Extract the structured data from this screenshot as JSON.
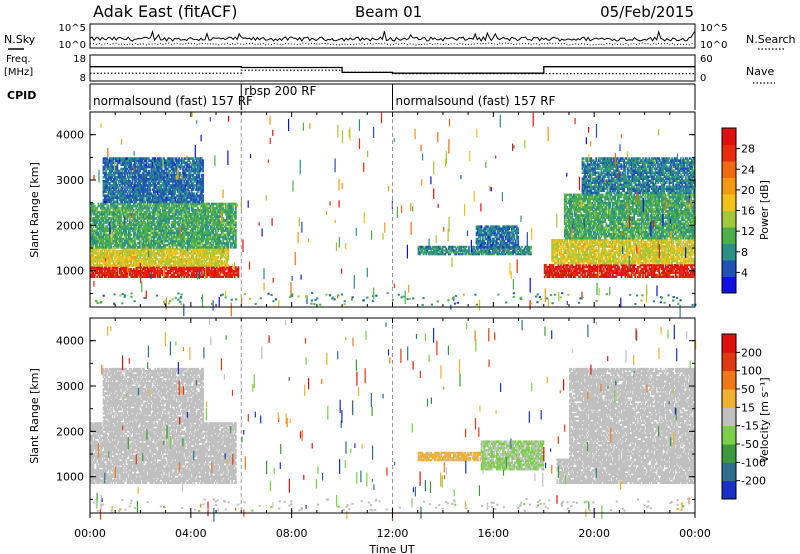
{
  "header": {
    "station": "Adak East (fitACF)",
    "beam": "Beam 01",
    "date": "05/Feb/2015"
  },
  "side_labels": {
    "nsky": "N.Sky",
    "nsearch": "N.Search",
    "freq": "Freq.",
    "freq_unit": "[MHz]",
    "nave": "Nave",
    "cpid": "CPID"
  },
  "nsky_axis": {
    "ticks": [
      "10^5",
      "10^0"
    ]
  },
  "nsearch_axis": {
    "ticks": [
      "10^5",
      "10^0"
    ]
  },
  "freq_axis": {
    "ticks": [
      "18",
      "8"
    ]
  },
  "nave_axis": {
    "ticks": [
      "60",
      "0"
    ]
  },
  "cpid_segments": [
    {
      "label": "normalsound (fast) 157 RF",
      "start_h": 0,
      "end_h": 6.0
    },
    {
      "label": "rbsp 200 RF",
      "start_h": 6.0,
      "end_h": 12.0
    },
    {
      "label": "normalsound (fast) 157 RF",
      "start_h": 12.0,
      "end_h": 24
    }
  ],
  "time_axis": {
    "label": "Time UT",
    "ticks": [
      "00:00",
      "04:00",
      "08:00",
      "12:00",
      "16:00",
      "20:00",
      "00:00"
    ]
  },
  "power_panel": {
    "ylabel": "Slant Range [km]",
    "yticks": [
      "1000",
      "2000",
      "3000",
      "4000"
    ],
    "colorbar_label": "Power [dB]",
    "colorbar_ticks": [
      "4",
      "8",
      "12",
      "16",
      "20",
      "24",
      "28"
    ],
    "colors": [
      "#1010e0",
      "#2050b8",
      "#2a8f86",
      "#4bb04b",
      "#a0c83a",
      "#f2c21a",
      "#f29a12",
      "#f06a10",
      "#e82a10",
      "#e01010"
    ]
  },
  "velocity_panel": {
    "ylabel": "Slant Range [km]",
    "yticks": [
      "1000",
      "2000",
      "3000",
      "4000"
    ],
    "colorbar_label": "Velocity [m s⁻¹]",
    "colorbar_ticks": [
      "200",
      "100",
      "50",
      "15",
      "-15",
      "-50",
      "-100",
      "-200"
    ],
    "colors": [
      "#1a2ec8",
      "#2f6e8e",
      "#3c9a3c",
      "#7bd048",
      "#c0c0c0",
      "#f0b030",
      "#f07818",
      "#e03a12",
      "#e01010"
    ]
  },
  "chart_data": [
    {
      "type": "line",
      "title": "N.Sky / N.Search",
      "x_range_h": [
        0,
        24
      ],
      "series": [
        {
          "name": "N.Sky",
          "style": "solid"
        },
        {
          "name": "N.Search",
          "style": "dotted"
        }
      ]
    },
    {
      "type": "line",
      "title": "Freq. [MHz] / Nave",
      "x_range_h": [
        0,
        24
      ],
      "series": [
        {
          "name": "Freq.",
          "x": [
            0,
            6.0,
            6.0,
            10.0,
            10.0,
            12.0,
            12.0,
            18.0,
            18.0,
            24
          ],
          "y": [
            13.5,
            13.5,
            13.2,
            13.2,
            11.3,
            11.3,
            11.0,
            11.0,
            13.5,
            13.5
          ]
        },
        {
          "name": "Nave",
          "style": "dotted",
          "x": [
            0,
            6.0,
            6.0,
            10.0,
            10.0,
            12.0,
            12.0,
            24
          ],
          "y": [
            18,
            18,
            25,
            25,
            20,
            20,
            17,
            17
          ]
        }
      ],
      "ylim_left": [
        8,
        18
      ],
      "ylim_right": [
        0,
        60
      ]
    },
    {
      "type": "heatmap",
      "title": "Power [dB]",
      "xlabel": "Time UT",
      "ylabel": "Slant Range [km]",
      "x_range_h": [
        0,
        24
      ],
      "ylim": [
        200,
        4500
      ],
      "zlim": [
        0,
        31
      ],
      "bands": [
        {
          "t0": 0.0,
          "t1": 5.9,
          "r0": 850,
          "r1": 1100,
          "value": 28
        },
        {
          "t0": 0.0,
          "t1": 5.5,
          "r0": 1100,
          "r1": 1500,
          "value": 16
        },
        {
          "t0": 0.0,
          "t1": 5.8,
          "r0": 1500,
          "r1": 2500,
          "value": 10
        },
        {
          "t0": 0.5,
          "t1": 4.5,
          "r0": 2500,
          "r1": 3500,
          "value": 6
        },
        {
          "t0": 13.0,
          "t1": 17.5,
          "r0": 1350,
          "r1": 1550,
          "value": 8
        },
        {
          "t0": 15.3,
          "t1": 17.0,
          "r0": 1500,
          "r1": 2000,
          "value": 6
        },
        {
          "t0": 18.0,
          "t1": 24.0,
          "r0": 850,
          "r1": 1150,
          "value": 28
        },
        {
          "t0": 18.3,
          "t1": 24.0,
          "r0": 1150,
          "r1": 1700,
          "value": 16
        },
        {
          "t0": 18.8,
          "t1": 24.0,
          "r0": 1700,
          "r1": 2700,
          "value": 10
        },
        {
          "t0": 19.5,
          "t1": 24.0,
          "r0": 2700,
          "r1": 3500,
          "value": 7
        }
      ]
    },
    {
      "type": "heatmap",
      "title": "Velocity [m s⁻¹]",
      "xlabel": "Time UT",
      "ylabel": "Slant Range [km]",
      "x_range_h": [
        0,
        24
      ],
      "ylim": [
        200,
        4500
      ],
      "zlim": [
        -250,
        250
      ],
      "bands": [
        {
          "t0": 0.0,
          "t1": 5.8,
          "r0": 850,
          "r1": 2200,
          "value": 0
        },
        {
          "t0": 0.5,
          "t1": 4.5,
          "r0": 2200,
          "r1": 3400,
          "value": 0
        },
        {
          "t0": 13.0,
          "t1": 15.5,
          "r0": 1350,
          "r1": 1550,
          "value": 40
        },
        {
          "t0": 15.5,
          "t1": 18.0,
          "r0": 1150,
          "r1": 1800,
          "value": -30
        },
        {
          "t0": 18.5,
          "t1": 24.0,
          "r0": 850,
          "r1": 1400,
          "value": 0
        },
        {
          "t0": 19.0,
          "t1": 24.0,
          "r0": 1400,
          "r1": 3400,
          "value": 0
        }
      ]
    }
  ]
}
